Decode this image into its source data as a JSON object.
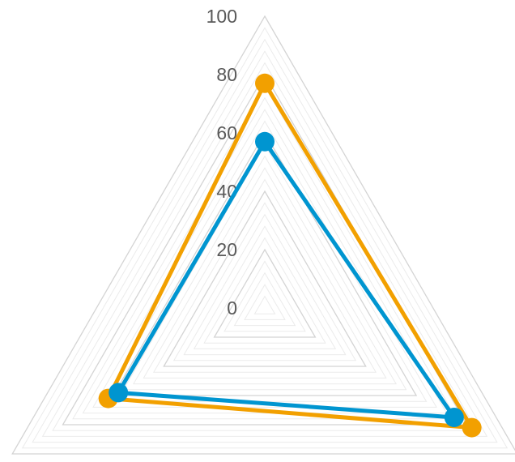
{
  "chart_data": {
    "type": "radar",
    "title": "",
    "axes_count": 3,
    "categories": [
      "",
      "",
      ""
    ],
    "r_range": [
      0,
      100
    ],
    "major_ticks": [
      0,
      20,
      40,
      60,
      80,
      100
    ],
    "minor_step": 4,
    "grid": true,
    "legend": "none",
    "series": [
      {
        "color": "#F2A000",
        "values": [
          77,
          82,
          62
        ]
      },
      {
        "color": "#0095D0",
        "values": [
          57,
          75,
          58
        ]
      }
    ],
    "colors": {
      "major_grid": "#D4D4D4",
      "minor_grid": "#EBEBEB",
      "label": "#595959"
    }
  }
}
